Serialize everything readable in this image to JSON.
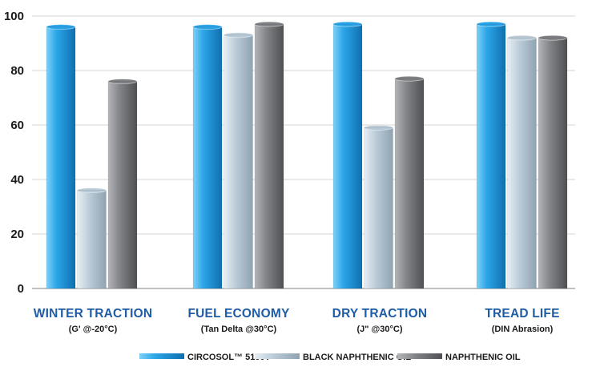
{
  "chart_data": {
    "type": "bar",
    "categories": [
      "WINTER TRACTION",
      "FUEL ECONOMY",
      "DRY TRACTION",
      "TREAD LIFE"
    ],
    "category_subtitles": [
      "(G' @-20°C)",
      "(Tan Delta @30°C)",
      "(J\" @30°C)",
      "(DIN Abrasion)"
    ],
    "series": [
      {
        "name": "CIRCOSOL™ 5100T",
        "values": [
          96,
          96,
          97,
          97
        ],
        "color": "#2aa3e6"
      },
      {
        "name": "BLACK NAPHTHENIC OIL",
        "values": [
          36,
          93,
          59,
          92
        ],
        "color": "#b9cad6"
      },
      {
        "name": "NAPHTHENIC OIL",
        "values": [
          76,
          97,
          77,
          92
        ],
        "color": "#7d7f82"
      }
    ],
    "ylim": [
      0,
      100
    ],
    "yticks": [
      0,
      20,
      40,
      60,
      80,
      100
    ],
    "grid": true,
    "legend_position": "bottom",
    "category_label_color": "#1f5ca6"
  }
}
